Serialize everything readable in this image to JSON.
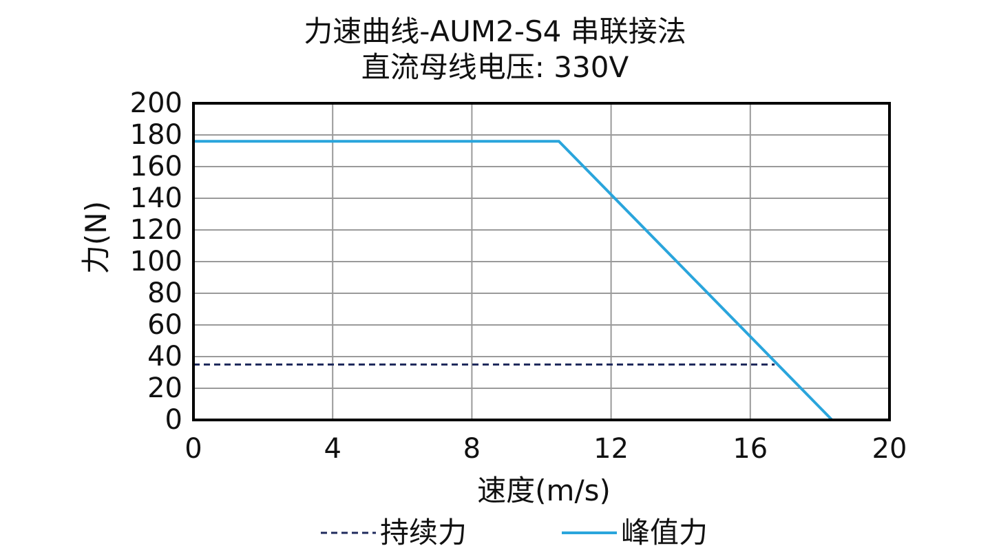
{
  "chart_data": {
    "type": "line",
    "title": "力速曲线-AUM2-S4 串联接法",
    "subtitle": "直流母线电压: 330V",
    "xlabel": "速度(m/s)",
    "ylabel": "力(N)",
    "xlim": [
      0,
      20
    ],
    "ylim": [
      0,
      200
    ],
    "xticks": [
      "0",
      "4",
      "8",
      "12",
      "16",
      "20"
    ],
    "yticks": [
      "0",
      "20",
      "40",
      "60",
      "80",
      "100",
      "120",
      "140",
      "160",
      "180",
      "200"
    ],
    "grid": true,
    "legend_position": "bottom",
    "series": [
      {
        "name": "持续力",
        "style": "dashed",
        "color": "#1f2a5c",
        "points": [
          [
            0,
            35
          ],
          [
            16.7,
            35
          ]
        ]
      },
      {
        "name": "峰值力",
        "style": "solid",
        "color": "#2aa5dc",
        "points": [
          [
            0,
            176
          ],
          [
            10.5,
            176
          ],
          [
            18.35,
            0
          ]
        ]
      }
    ]
  }
}
